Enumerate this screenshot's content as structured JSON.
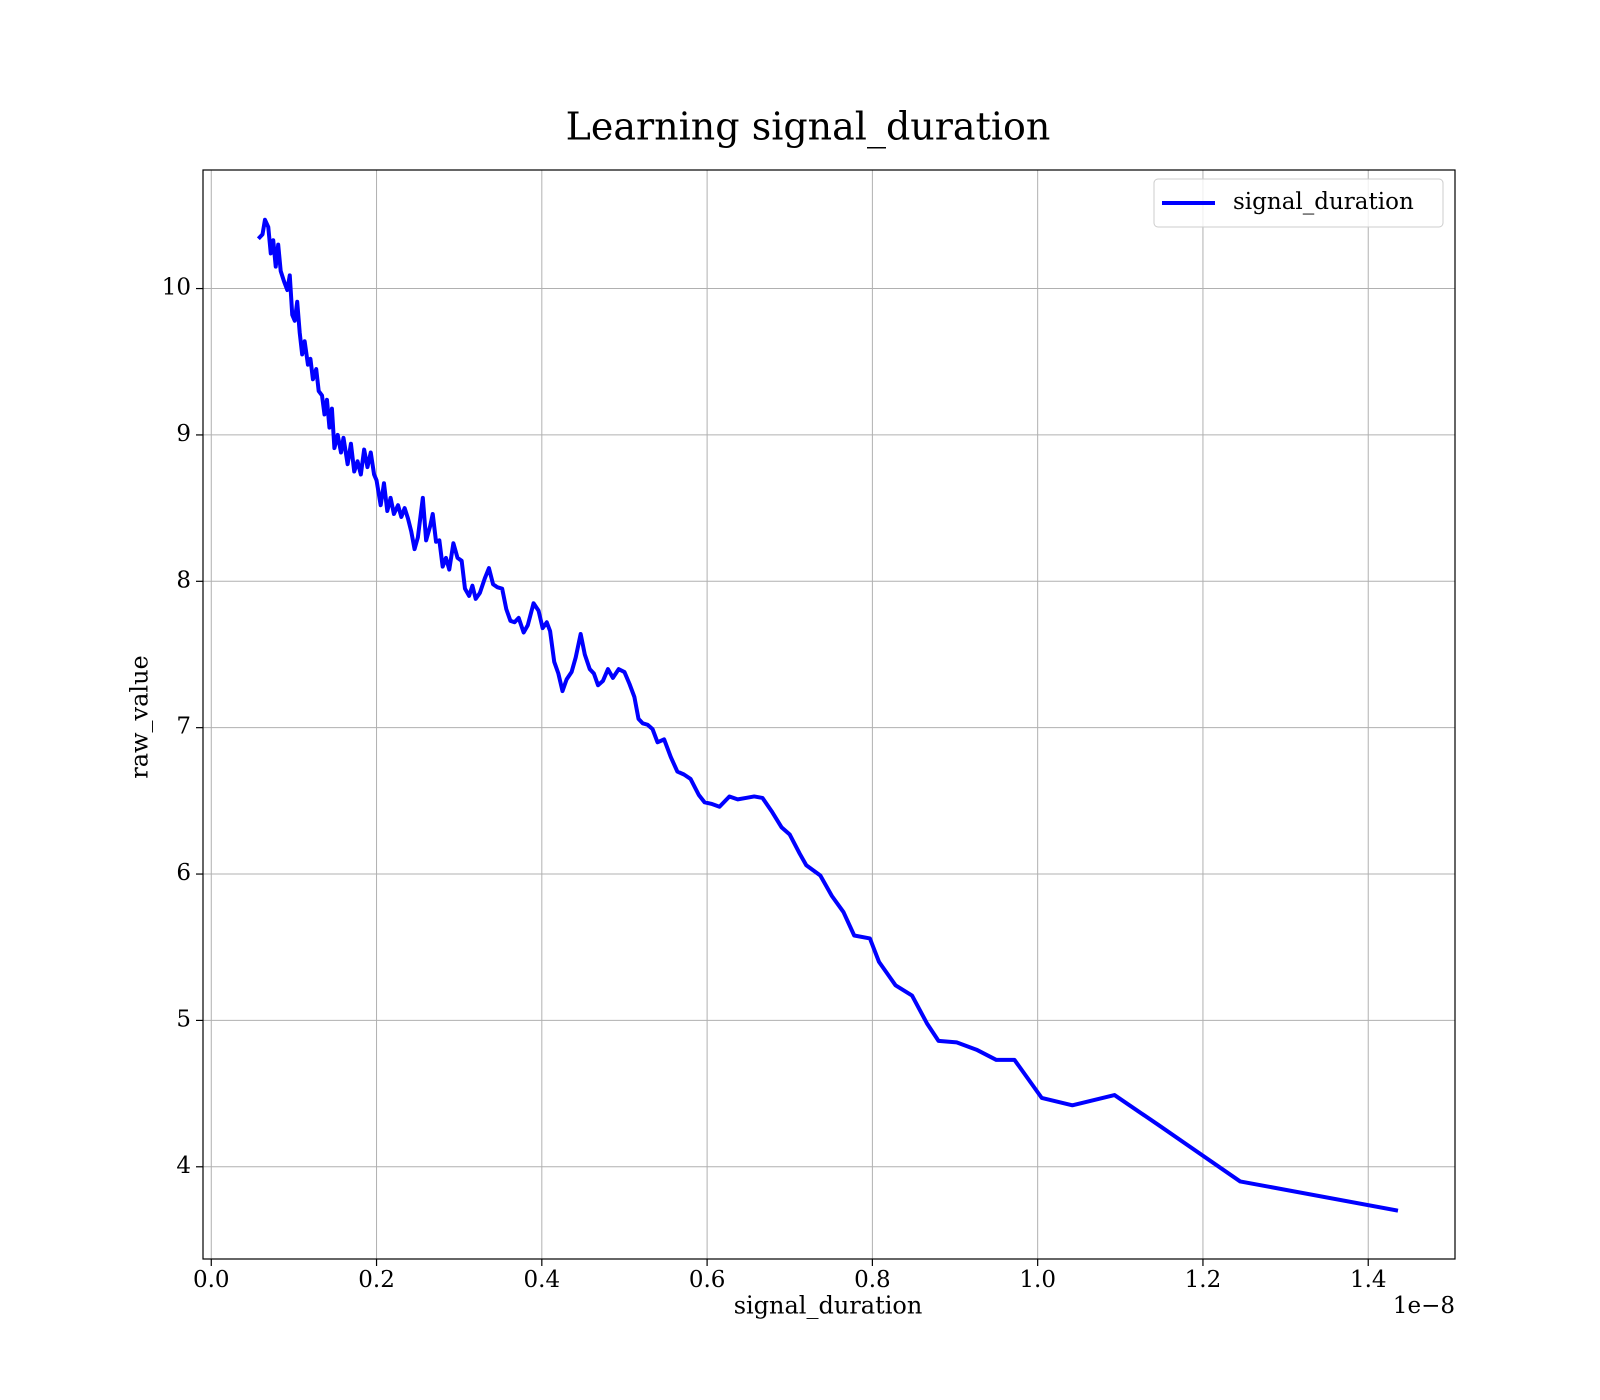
{
  "chart_data": {
    "type": "line",
    "title": "Learning signal_duration",
    "xlabel": "signal_duration",
    "ylabel": "raw_value",
    "x_offset_label": "1e−8",
    "x": [
      0.057,
      0.062,
      0.065,
      0.069,
      0.072,
      0.075,
      0.078,
      0.081,
      0.084,
      0.088,
      0.092,
      0.095,
      0.098,
      0.101,
      0.104,
      0.107,
      0.11,
      0.113,
      0.117,
      0.12,
      0.123,
      0.127,
      0.13,
      0.134,
      0.137,
      0.14,
      0.143,
      0.146,
      0.149,
      0.153,
      0.157,
      0.16,
      0.165,
      0.169,
      0.173,
      0.177,
      0.181,
      0.185,
      0.189,
      0.193,
      0.197,
      0.2,
      0.205,
      0.209,
      0.213,
      0.217,
      0.221,
      0.226,
      0.23,
      0.234,
      0.238,
      0.242,
      0.246,
      0.25,
      0.256,
      0.26,
      0.265,
      0.268,
      0.272,
      0.276,
      0.28,
      0.284,
      0.288,
      0.293,
      0.298,
      0.303,
      0.307,
      0.312,
      0.316,
      0.32,
      0.325,
      0.331,
      0.336,
      0.341,
      0.346,
      0.352,
      0.357,
      0.362,
      0.367,
      0.372,
      0.378,
      0.383,
      0.39,
      0.396,
      0.401,
      0.406,
      0.41,
      0.415,
      0.42,
      0.425,
      0.43,
      0.436,
      0.441,
      0.447,
      0.452,
      0.458,
      0.463,
      0.468,
      0.474,
      0.48,
      0.486,
      0.493,
      0.5,
      0.506,
      0.512,
      0.517,
      0.522,
      0.528,
      0.534,
      0.54,
      0.548,
      0.556,
      0.564,
      0.572,
      0.58,
      0.59,
      0.597,
      0.605,
      0.615,
      0.627,
      0.637,
      0.647,
      0.657,
      0.667,
      0.678,
      0.69,
      0.7,
      0.712,
      0.72,
      0.737,
      0.751,
      0.765,
      0.778,
      0.797,
      0.808,
      0.828,
      0.848,
      0.866,
      0.88,
      0.902,
      0.926,
      0.95,
      0.972,
      1.005,
      1.042,
      1.093,
      1.145,
      1.245,
      1.436
    ],
    "series": [
      {
        "name": "signal_duration",
        "color": "#0000ff",
        "values": [
          10.34,
          10.37,
          10.47,
          10.42,
          10.24,
          10.33,
          10.15,
          10.3,
          10.12,
          10.05,
          9.99,
          10.09,
          9.82,
          9.78,
          9.91,
          9.7,
          9.55,
          9.64,
          9.48,
          9.52,
          9.38,
          9.45,
          9.3,
          9.27,
          9.14,
          9.24,
          9.05,
          9.18,
          8.91,
          9.0,
          8.88,
          8.98,
          8.8,
          8.94,
          8.75,
          8.82,
          8.73,
          8.9,
          8.78,
          8.88,
          8.73,
          8.69,
          8.52,
          8.67,
          8.48,
          8.57,
          8.46,
          8.52,
          8.44,
          8.5,
          8.43,
          8.34,
          8.22,
          8.3,
          8.57,
          8.28,
          8.38,
          8.46,
          8.27,
          8.28,
          8.1,
          8.16,
          8.08,
          8.26,
          8.16,
          8.14,
          7.95,
          7.9,
          7.97,
          7.88,
          7.92,
          8.02,
          8.09,
          7.98,
          7.96,
          7.95,
          7.81,
          7.73,
          7.72,
          7.75,
          7.65,
          7.7,
          7.85,
          7.8,
          7.68,
          7.72,
          7.66,
          7.45,
          7.37,
          7.25,
          7.33,
          7.38,
          7.48,
          7.64,
          7.5,
          7.4,
          7.37,
          7.29,
          7.32,
          7.4,
          7.34,
          7.4,
          7.38,
          7.3,
          7.21,
          7.06,
          7.03,
          7.02,
          6.99,
          6.9,
          6.92,
          6.8,
          6.7,
          6.68,
          6.65,
          6.54,
          6.49,
          6.48,
          6.46,
          6.53,
          6.51,
          6.52,
          6.53,
          6.52,
          6.43,
          6.32,
          6.27,
          6.14,
          6.06,
          5.99,
          5.85,
          5.74,
          5.58,
          5.56,
          5.4,
          5.24,
          5.17,
          4.98,
          4.86,
          4.85,
          4.8,
          4.73,
          4.73,
          4.47,
          4.42,
          4.49,
          4.29,
          3.9,
          3.7
        ]
      }
    ],
    "xlim": [
      -0.01,
      1.505
    ],
    "ylim": [
      3.37,
      10.81
    ],
    "xticks": [
      {
        "value": 0,
        "label": "0.0"
      },
      0.2,
      0.4,
      0.6,
      0.8,
      {
        "value": 1,
        "label": "1.0"
      },
      1.2,
      1.4
    ],
    "yticks": [
      4,
      5,
      6,
      7,
      8,
      9,
      10
    ],
    "grid": true,
    "legend": "upper right"
  }
}
